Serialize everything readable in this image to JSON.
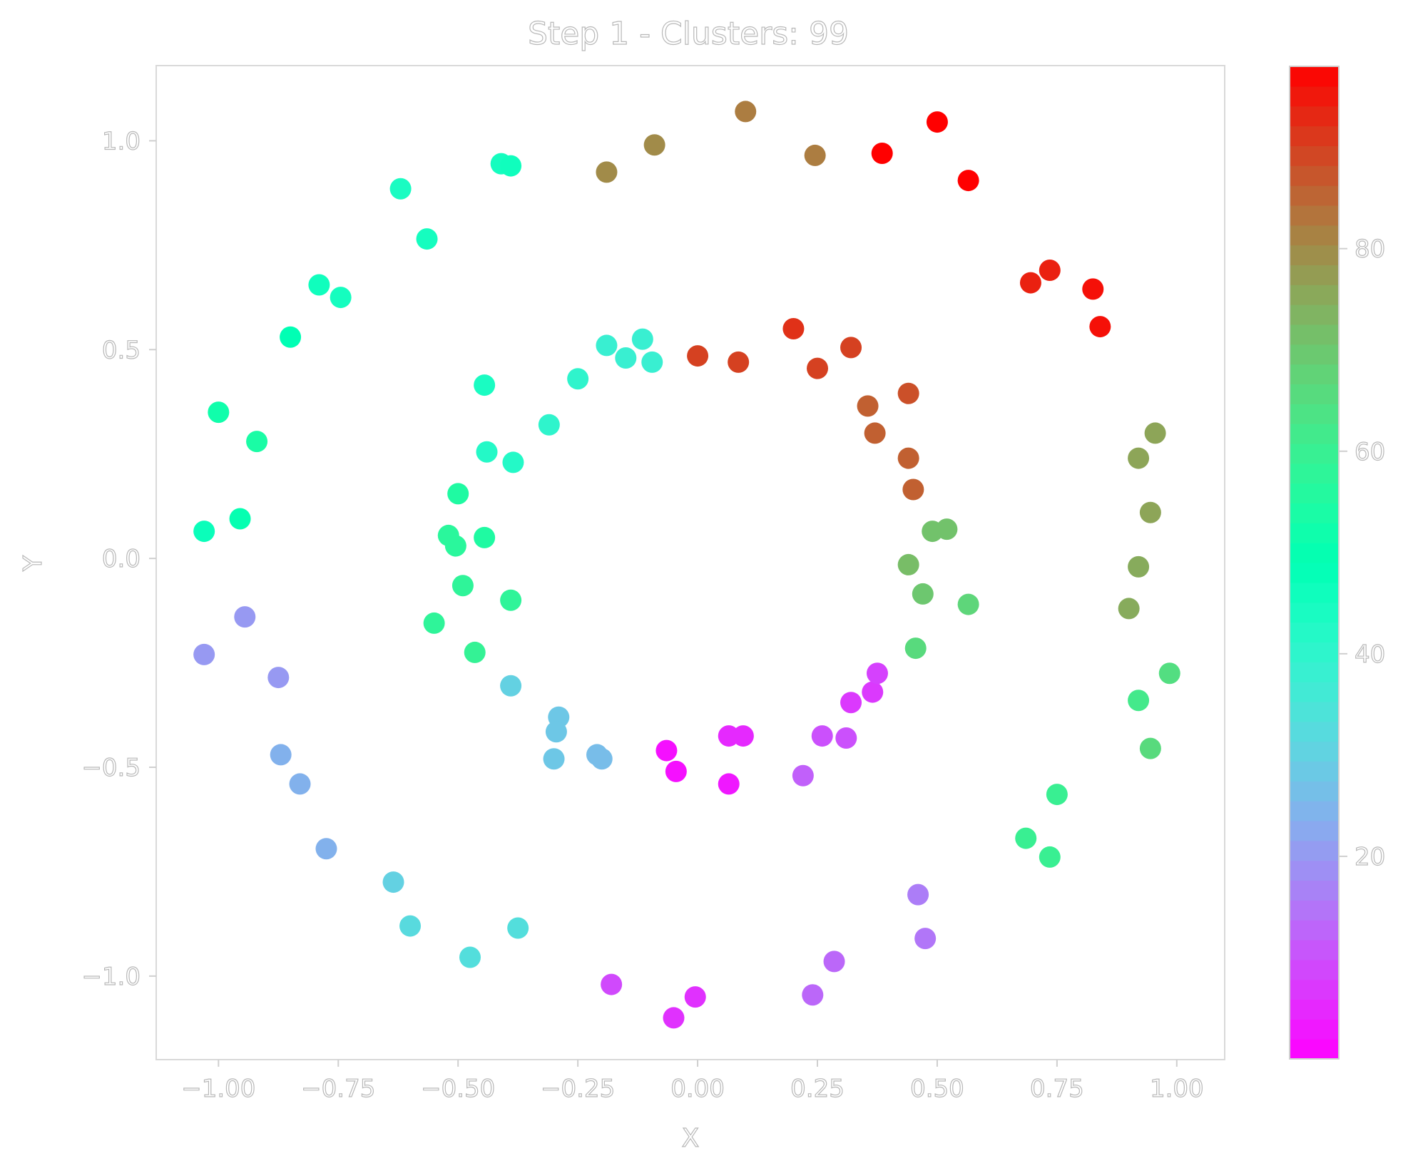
{
  "chart_data": {
    "type": "scatter",
    "title": "Step 1 - Clusters: 99",
    "xlabel": "X",
    "ylabel": "Y",
    "xlim": [
      -1.13,
      1.1
    ],
    "ylim": [
      -1.2,
      1.18
    ],
    "xticks": [
      -1.0,
      -0.75,
      -0.5,
      -0.25,
      0.0,
      0.25,
      0.5,
      0.75,
      1.0
    ],
    "xtick_labels": [
      "−1.00",
      "−0.75",
      "−0.50",
      "−0.25",
      "0.00",
      "0.25",
      "0.50",
      "0.75",
      "1.00"
    ],
    "yticks": [
      1.0,
      0.5,
      0.0,
      -0.5,
      -1.0
    ],
    "ytick_labels": [
      "1.0",
      "0.5",
      "0.0",
      "−0.5",
      "−1.0"
    ],
    "colormap": "rainbow",
    "colorbar": {
      "min": 0,
      "max": 98,
      "ticks": [
        20,
        40,
        60,
        80
      ],
      "tick_labels": [
        "20",
        "40",
        "60",
        "80"
      ]
    },
    "grid": false,
    "points": [
      {
        "x": -0.05,
        "y": -1.1,
        "c": 6
      },
      {
        "x": -0.005,
        "y": -1.05,
        "c": 6
      },
      {
        "x": 0.24,
        "y": -1.045,
        "c": 13
      },
      {
        "x": 0.285,
        "y": -0.965,
        "c": 13
      },
      {
        "x": 0.475,
        "y": -0.91,
        "c": 15
      },
      {
        "x": 0.46,
        "y": -0.805,
        "c": 16
      },
      {
        "x": -0.18,
        "y": -1.02,
        "c": 9
      },
      {
        "x": -0.475,
        "y": -0.955,
        "c": 33
      },
      {
        "x": -0.375,
        "y": -0.885,
        "c": 33
      },
      {
        "x": -0.6,
        "y": -0.88,
        "c": 32
      },
      {
        "x": -0.635,
        "y": -0.775,
        "c": 30
      },
      {
        "x": -0.775,
        "y": -0.695,
        "c": 24
      },
      {
        "x": -0.83,
        "y": -0.54,
        "c": 24
      },
      {
        "x": -0.87,
        "y": -0.47,
        "c": 24
      },
      {
        "x": -0.875,
        "y": -0.285,
        "c": 20
      },
      {
        "x": -0.945,
        "y": -0.14,
        "c": 20
      },
      {
        "x": -1.03,
        "y": -0.23,
        "c": 20
      },
      {
        "x": -1.03,
        "y": 0.065,
        "c": 47
      },
      {
        "x": -0.955,
        "y": 0.095,
        "c": 50
      },
      {
        "x": -0.92,
        "y": 0.28,
        "c": 54
      },
      {
        "x": -1.0,
        "y": 0.35,
        "c": 52
      },
      {
        "x": -0.85,
        "y": 0.53,
        "c": 49
      },
      {
        "x": -0.79,
        "y": 0.655,
        "c": 46
      },
      {
        "x": -0.745,
        "y": 0.625,
        "c": 45
      },
      {
        "x": -0.565,
        "y": 0.765,
        "c": 45
      },
      {
        "x": -0.62,
        "y": 0.885,
        "c": 44
      },
      {
        "x": -0.41,
        "y": 0.945,
        "c": 45
      },
      {
        "x": -0.39,
        "y": 0.94,
        "c": 46
      },
      {
        "x": -0.19,
        "y": 0.925,
        "c": 80
      },
      {
        "x": -0.09,
        "y": 0.99,
        "c": 80
      },
      {
        "x": 0.1,
        "y": 1.07,
        "c": 82
      },
      {
        "x": 0.245,
        "y": 0.965,
        "c": 82
      },
      {
        "x": 0.385,
        "y": 0.97,
        "c": 98
      },
      {
        "x": 0.5,
        "y": 1.045,
        "c": 98
      },
      {
        "x": 0.565,
        "y": 0.905,
        "c": 98
      },
      {
        "x": 0.695,
        "y": 0.66,
        "c": 94
      },
      {
        "x": 0.735,
        "y": 0.69,
        "c": 94
      },
      {
        "x": 0.825,
        "y": 0.645,
        "c": 96
      },
      {
        "x": 0.84,
        "y": 0.555,
        "c": 96
      },
      {
        "x": 0.955,
        "y": 0.3,
        "c": 76
      },
      {
        "x": 0.92,
        "y": 0.24,
        "c": 76
      },
      {
        "x": 0.945,
        "y": 0.11,
        "c": 76
      },
      {
        "x": 0.92,
        "y": -0.02,
        "c": 75
      },
      {
        "x": 0.9,
        "y": -0.12,
        "c": 75
      },
      {
        "x": 0.985,
        "y": -0.275,
        "c": 65
      },
      {
        "x": 0.92,
        "y": -0.34,
        "c": 62
      },
      {
        "x": 0.945,
        "y": -0.455,
        "c": 66
      },
      {
        "x": 0.75,
        "y": -0.565,
        "c": 60
      },
      {
        "x": 0.685,
        "y": -0.67,
        "c": 60
      },
      {
        "x": 0.735,
        "y": -0.715,
        "c": 60
      },
      {
        "x": -0.065,
        "y": -0.46,
        "c": 2
      },
      {
        "x": -0.045,
        "y": -0.51,
        "c": 2
      },
      {
        "x": 0.065,
        "y": -0.425,
        "c": 5
      },
      {
        "x": 0.095,
        "y": -0.425,
        "c": 5
      },
      {
        "x": 0.065,
        "y": -0.54,
        "c": 3
      },
      {
        "x": 0.22,
        "y": -0.52,
        "c": 12
      },
      {
        "x": 0.26,
        "y": -0.425,
        "c": 10
      },
      {
        "x": 0.31,
        "y": -0.43,
        "c": 10
      },
      {
        "x": 0.32,
        "y": -0.345,
        "c": 7
      },
      {
        "x": 0.365,
        "y": -0.32,
        "c": 7
      },
      {
        "x": 0.375,
        "y": -0.275,
        "c": 8
      },
      {
        "x": 0.455,
        "y": -0.215,
        "c": 66
      },
      {
        "x": 0.47,
        "y": -0.085,
        "c": 70
      },
      {
        "x": 0.44,
        "y": -0.015,
        "c": 72
      },
      {
        "x": 0.565,
        "y": -0.11,
        "c": 67
      },
      {
        "x": 0.49,
        "y": 0.065,
        "c": 71
      },
      {
        "x": 0.52,
        "y": 0.07,
        "c": 71
      },
      {
        "x": 0.45,
        "y": 0.165,
        "c": 86
      },
      {
        "x": 0.44,
        "y": 0.24,
        "c": 86
      },
      {
        "x": 0.37,
        "y": 0.3,
        "c": 86
      },
      {
        "x": 0.355,
        "y": 0.365,
        "c": 86
      },
      {
        "x": 0.44,
        "y": 0.395,
        "c": 88
      },
      {
        "x": 0.32,
        "y": 0.505,
        "c": 90
      },
      {
        "x": 0.25,
        "y": 0.455,
        "c": 90
      },
      {
        "x": 0.2,
        "y": 0.55,
        "c": 92
      },
      {
        "x": 0.085,
        "y": 0.47,
        "c": 90
      },
      {
        "x": 0.0,
        "y": 0.485,
        "c": 90
      },
      {
        "x": -0.095,
        "y": 0.47,
        "c": 38
      },
      {
        "x": -0.115,
        "y": 0.525,
        "c": 38
      },
      {
        "x": -0.15,
        "y": 0.48,
        "c": 38
      },
      {
        "x": -0.19,
        "y": 0.51,
        "c": 38
      },
      {
        "x": -0.25,
        "y": 0.43,
        "c": 40
      },
      {
        "x": -0.31,
        "y": 0.32,
        "c": 40
      },
      {
        "x": -0.44,
        "y": 0.255,
        "c": 42
      },
      {
        "x": -0.385,
        "y": 0.23,
        "c": 42
      },
      {
        "x": -0.445,
        "y": 0.415,
        "c": 44
      },
      {
        "x": -0.5,
        "y": 0.155,
        "c": 55
      },
      {
        "x": -0.52,
        "y": 0.055,
        "c": 57
      },
      {
        "x": -0.505,
        "y": 0.03,
        "c": 57
      },
      {
        "x": -0.445,
        "y": 0.05,
        "c": 55
      },
      {
        "x": -0.49,
        "y": -0.065,
        "c": 58
      },
      {
        "x": -0.39,
        "y": -0.1,
        "c": 58
      },
      {
        "x": -0.55,
        "y": -0.155,
        "c": 58
      },
      {
        "x": -0.465,
        "y": -0.225,
        "c": 59
      },
      {
        "x": -0.39,
        "y": -0.305,
        "c": 30
      },
      {
        "x": -0.29,
        "y": -0.38,
        "c": 28
      },
      {
        "x": -0.295,
        "y": -0.415,
        "c": 28
      },
      {
        "x": -0.3,
        "y": -0.48,
        "c": 28
      },
      {
        "x": -0.21,
        "y": -0.47,
        "c": 26
      },
      {
        "x": -0.2,
        "y": -0.48,
        "c": 26
      }
    ]
  }
}
